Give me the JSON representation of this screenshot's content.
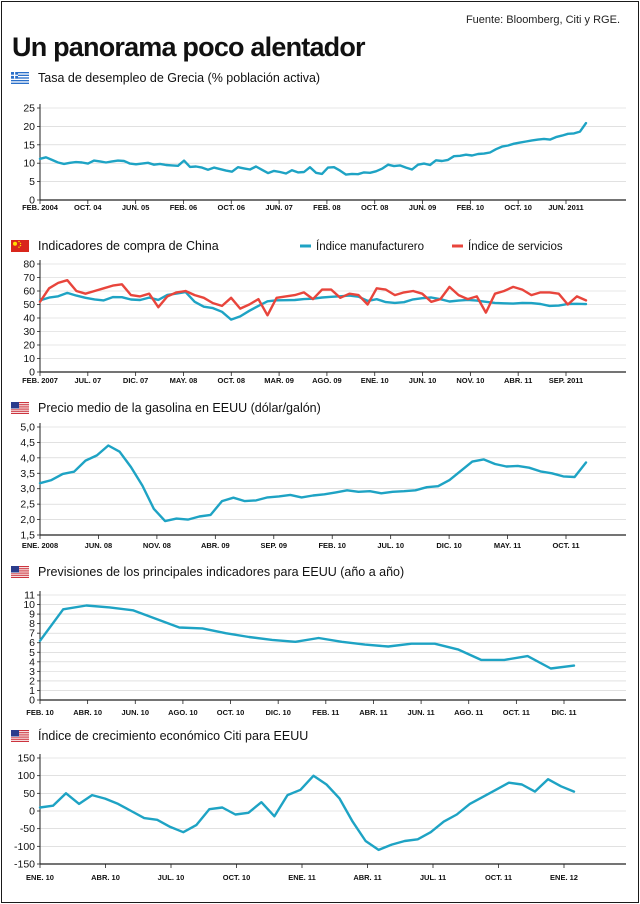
{
  "source": "Fuente: Bloomberg, Citi y RGE.",
  "title": "Un panorama poco alentador",
  "colors": {
    "line": "#1ea3c4",
    "line2": "#e8453c",
    "axis": "#222222",
    "grid": "#cfcfcf"
  },
  "chart_data": [
    {
      "type": "line",
      "flag": "greece-flag",
      "title": "Tasa de desempleo de Grecia (% población activa)",
      "ylim": [
        0,
        25
      ],
      "yticks": [
        "0",
        "5",
        "10",
        "15",
        "20",
        "25"
      ],
      "xticks": [
        "FEB. 2004",
        "OCT. 04",
        "JUN. 05",
        "FEB. 06",
        "OCT. 06",
        "JUN. 07",
        "FEB. 08",
        "OCT. 08",
        "JUN. 09",
        "FEB. 10",
        "OCT. 10",
        "JUN. 2011"
      ],
      "xlim": [
        0,
        91
      ],
      "series": [
        {
          "values": [
            11.2,
            11.6,
            10.9,
            10.2,
            9.8,
            10.1,
            10.3,
            10.2,
            9.9,
            10.7,
            10.5,
            10.2,
            10.5,
            10.7,
            10.6,
            9.9,
            9.7,
            9.9,
            10.1,
            9.6,
            9.8,
            9.5,
            9.4,
            9.3,
            10.7,
            9.0,
            9.1,
            8.8,
            8.2,
            8.8,
            8.4,
            8.0,
            7.7,
            8.9,
            8.6,
            8.3,
            9.1,
            8.2,
            7.3,
            7.9,
            7.6,
            7.2,
            8.1,
            7.5,
            7.6,
            8.9,
            7.4,
            7.1,
            8.8,
            8.9,
            8.0,
            6.9,
            7.1,
            7.0,
            7.5,
            7.4,
            7.8,
            8.5,
            9.6,
            9.2,
            9.4,
            8.8,
            8.3,
            9.6,
            9.9,
            9.5,
            10.8,
            10.6,
            10.9,
            11.9,
            12.0,
            12.3,
            12.1,
            12.5,
            12.6,
            12.9,
            13.8,
            14.5,
            14.8,
            15.3,
            15.6,
            15.9,
            16.2,
            16.4,
            16.6,
            16.4,
            17.1,
            17.5,
            18.0,
            18.1,
            18.6,
            20.9
          ]
        }
      ]
    },
    {
      "type": "line",
      "flag": "china-flag",
      "title": "Indicadores de compra de China",
      "ylim": [
        0,
        80
      ],
      "yticks": [
        "0",
        "10",
        "20",
        "30",
        "40",
        "50",
        "60",
        "70",
        "80"
      ],
      "xticks": [
        "FEB. 2007",
        "JUL. 07",
        "DIC. 07",
        "MAY. 08",
        "OCT. 08",
        "MAR. 09",
        "AGO. 09",
        "ENE. 10",
        "JUN. 10",
        "NOV. 10",
        "ABR. 11",
        "SEP. 2011"
      ],
      "xlim": [
        0,
        60
      ],
      "series": [
        {
          "name": "Índice manufacturero",
          "values": [
            53.1,
            55.1,
            56.1,
            58.6,
            56.6,
            55.0,
            53.8,
            53.0,
            55.5,
            55.4,
            53.7,
            53.3,
            55.1,
            53.4,
            57.1,
            58.1,
            59.2,
            52.0,
            48.4,
            47.3,
            44.6,
            38.8,
            41.2,
            45.3,
            49.0,
            52.4,
            53.1,
            53.2,
            53.3,
            54.0,
            54.3,
            55.2,
            55.7,
            56.1,
            56.6,
            55.8,
            52.7,
            53.9,
            51.8,
            51.2,
            51.7,
            53.8,
            54.7,
            55.2,
            53.9,
            52.2,
            52.9,
            53.4,
            52.9,
            52.0,
            51.2,
            50.9,
            50.7,
            51.2,
            51.0,
            50.4,
            49.0,
            49.2,
            50.4,
            50.5,
            50.3
          ]
        },
        {
          "name": "Índice de servicios",
          "values": [
            52,
            62,
            66,
            68,
            60,
            58,
            60,
            62,
            64,
            65,
            57,
            56,
            58,
            48,
            56,
            59,
            60,
            57,
            55,
            51,
            49,
            55,
            47,
            50,
            54,
            42,
            55,
            56,
            57,
            59,
            54,
            61,
            61,
            55,
            58,
            57,
            50,
            62,
            61,
            57,
            59,
            60,
            58,
            52,
            54,
            63,
            57,
            54,
            56,
            44,
            58,
            60,
            63,
            61,
            57,
            59,
            59,
            58,
            50,
            56,
            53
          ]
        }
      ]
    },
    {
      "type": "line",
      "flag": "usa-flag",
      "title": "Precio medio de la gasolina en EEUU (dólar/galón)",
      "ylim": [
        1.5,
        5.0
      ],
      "yticks": [
        "1,5",
        "2,0",
        "2,5",
        "3,0",
        "3,5",
        "4,0",
        "4,5",
        "5,0"
      ],
      "xticks": [
        "ENE. 2008",
        "JUN. 08",
        "NOV. 08",
        "ABR. 09",
        "SEP. 09",
        "FEB. 10",
        "JUL. 10",
        "DIC. 10",
        "MAY. 11",
        "OCT. 11"
      ],
      "xlim": [
        0,
        48
      ],
      "series": [
        {
          "values": [
            3.18,
            3.28,
            3.48,
            3.55,
            3.91,
            4.08,
            4.4,
            4.2,
            3.7,
            3.1,
            2.35,
            1.95,
            2.03,
            2.0,
            2.1,
            2.15,
            2.6,
            2.71,
            2.6,
            2.62,
            2.72,
            2.75,
            2.8,
            2.72,
            2.78,
            2.82,
            2.88,
            2.95,
            2.9,
            2.92,
            2.85,
            2.9,
            2.92,
            2.95,
            3.05,
            3.08,
            3.28,
            3.58,
            3.88,
            3.95,
            3.8,
            3.72,
            3.74,
            3.68,
            3.56,
            3.5,
            3.4,
            3.38,
            3.85
          ]
        }
      ]
    },
    {
      "type": "line",
      "flag": "usa-flag",
      "title": "Previsiones de los principales indicadores para EEUU (año a año)",
      "ylim": [
        0,
        11
      ],
      "yticks": [
        "0",
        "1",
        "2",
        "3",
        "4",
        "5",
        "6",
        "7",
        "8",
        "9",
        "10",
        "11"
      ],
      "xticks": [
        "FEB. 10",
        "ABR. 10",
        "JUN. 10",
        "AGO. 10",
        "OCT. 10",
        "DIC. 10",
        "FEB. 11",
        "ABR. 11",
        "JUN. 11",
        "AGO. 11",
        "OCT. 11",
        "DIC. 11"
      ],
      "xlim": [
        0,
        23
      ],
      "series": [
        {
          "values": [
            6.2,
            9.5,
            9.9,
            9.7,
            9.4,
            8.5,
            7.6,
            7.5,
            7.0,
            6.6,
            6.3,
            6.1,
            6.5,
            6.1,
            5.8,
            5.6,
            5.9,
            5.9,
            5.3,
            4.2,
            4.2,
            4.6,
            3.3,
            3.6
          ]
        }
      ]
    },
    {
      "type": "line",
      "flag": "usa-flag",
      "title": "Índice de crecimiento económico Citi para EEUU",
      "ylim": [
        -150,
        150
      ],
      "yticks": [
        "-150",
        "-100",
        "-50",
        "0",
        "50",
        "100",
        "150"
      ],
      "xticks": [
        "ENE. 10",
        "ABR. 10",
        "JUL. 10",
        "OCT. 10",
        "ENE. 11",
        "ABR. 11",
        "JUL. 11",
        "OCT. 11",
        "ENE. 12"
      ],
      "xlim": [
        0,
        26
      ],
      "series": [
        {
          "values": [
            10,
            15,
            50,
            20,
            45,
            35,
            20,
            0,
            -20,
            -25,
            -45,
            -60,
            -40,
            5,
            10,
            -10,
            -5,
            25,
            -15,
            45,
            60,
            100,
            75,
            35,
            -30,
            -85,
            -110,
            -95,
            -85,
            -80,
            -60,
            -30,
            -10,
            20,
            40,
            60,
            80,
            75,
            55,
            90,
            70,
            55
          ]
        }
      ]
    }
  ]
}
